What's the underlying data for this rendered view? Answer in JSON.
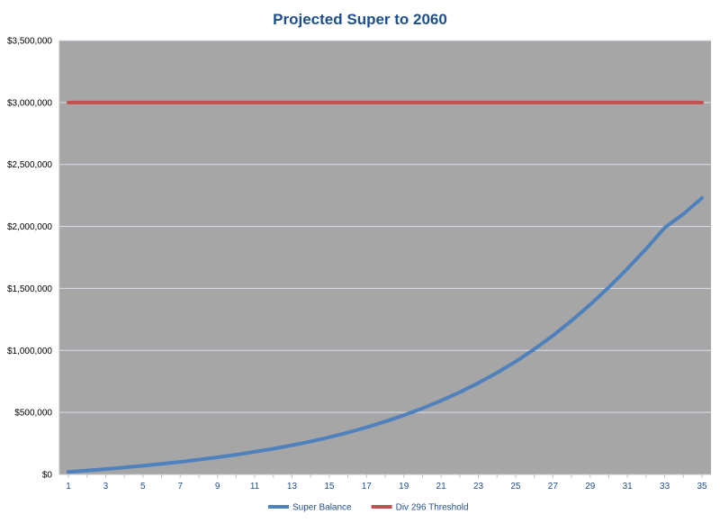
{
  "chart_data": {
    "type": "line",
    "title": "Projected Super to 2060",
    "xlabel": "",
    "ylabel": "",
    "x": [
      1,
      2,
      3,
      4,
      5,
      6,
      7,
      8,
      9,
      10,
      11,
      12,
      13,
      14,
      15,
      16,
      17,
      18,
      19,
      20,
      21,
      22,
      23,
      24,
      25,
      26,
      27,
      28,
      29,
      30,
      31,
      32,
      33,
      34,
      35
    ],
    "x_tick_labels": [
      "1",
      "3",
      "5",
      "7",
      "9",
      "11",
      "13",
      "15",
      "17",
      "19",
      "21",
      "23",
      "25",
      "27",
      "29",
      "31",
      "33",
      "35"
    ],
    "xlim": [
      1,
      35
    ],
    "ylim": [
      0,
      3500000
    ],
    "y_ticks": [
      0,
      500000,
      1000000,
      1500000,
      2000000,
      2500000,
      3000000,
      3500000
    ],
    "y_tick_labels": [
      "$0",
      "$500,000",
      "$1,000,000",
      "$1,500,000",
      "$2,000,000",
      "$2,500,000",
      "$3,000,000",
      "$3,500,000"
    ],
    "grid": true,
    "legend_position": "bottom",
    "series": [
      {
        "name": "Super Balance",
        "color": "#4f81bd",
        "values": [
          20000,
          31000,
          43000,
          56000,
          70000,
          85000,
          101000,
          119000,
          138000,
          159000,
          182000,
          207000,
          235000,
          266000,
          300000,
          338000,
          380000,
          426000,
          477000,
          533000,
          595000,
          663000,
          738000,
          820000,
          910000,
          1010000,
          1120000,
          1240000,
          1370000,
          1510000,
          1660000,
          1820000,
          1990000,
          2100000,
          2230000
        ]
      },
      {
        "name": "Div 296 Threshold",
        "color": "#c0504d",
        "values": [
          3000000,
          3000000,
          3000000,
          3000000,
          3000000,
          3000000,
          3000000,
          3000000,
          3000000,
          3000000,
          3000000,
          3000000,
          3000000,
          3000000,
          3000000,
          3000000,
          3000000,
          3000000,
          3000000,
          3000000,
          3000000,
          3000000,
          3000000,
          3000000,
          3000000,
          3000000,
          3000000,
          3000000,
          3000000,
          3000000,
          3000000,
          3000000,
          3000000,
          3000000,
          3000000
        ]
      }
    ],
    "plot_background": "#a6a6a6",
    "gridline_color": "#d9e1ee"
  }
}
